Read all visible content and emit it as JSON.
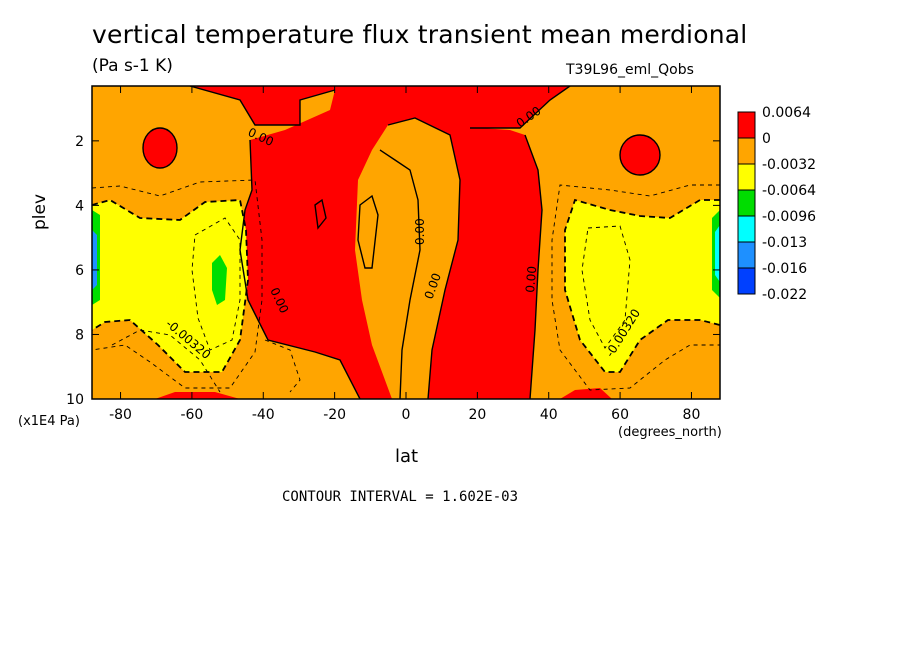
{
  "chart_data": {
    "type": "heatmap",
    "title": "vertical temperature flux transient mean merdional",
    "units": "(Pa s-1 K)",
    "run_label": "T39L96_eml_Qobs",
    "xlabel": "lat",
    "x_units": "(degrees_north)",
    "ylabel": "plev",
    "y_units": "(x1E4 Pa)",
    "x_range": [
      -88,
      88
    ],
    "y_range": [
      10,
      0.3
    ],
    "x_ticks": [
      "-80",
      "-60",
      "-40",
      "-20",
      "0",
      "20",
      "40",
      "60",
      "80"
    ],
    "y_ticks": [
      "2",
      "4",
      "6",
      "8",
      "10"
    ],
    "contour_interval": "CONTOUR INTERVAL = 1.602E-03",
    "colorbar": {
      "labels": [
        "0.0064",
        "0",
        "-0.0032",
        "-0.0064",
        "-0.0096",
        "-0.013",
        "-0.016",
        "-0.022"
      ],
      "colors": [
        "#ff0000",
        "#ffa500",
        "#ffff00",
        "#00dd00",
        "#00ffff",
        "#1e90ff",
        "#0040ff"
      ]
    },
    "contour_labels": [
      "0.00",
      "0.00",
      "0.00",
      "0.00",
      "0.00",
      "0.00",
      "0.00",
      "-0.00320",
      "-0.00320"
    ],
    "regions": [
      {
        "level": "-0.0032 to 0",
        "color": "#ffa500",
        "description": "background"
      },
      {
        "level": "0 to 0.0064",
        "color": "#ff0000",
        "location": "equatorial band lat -45..35, all levels"
      },
      {
        "level": "-0.0064 to -0.0032",
        "color": "#ffff00",
        "location": "lat -85..-40, plev 4-9"
      },
      {
        "level": "-0.0064 to -0.0032",
        "color": "#ffff00",
        "location": "lat 45..85, plev 4-9"
      },
      {
        "level": "-0.0096 to -0.0064",
        "color": "#00dd00",
        "location": "lat -53, plev 6.5"
      }
    ]
  }
}
